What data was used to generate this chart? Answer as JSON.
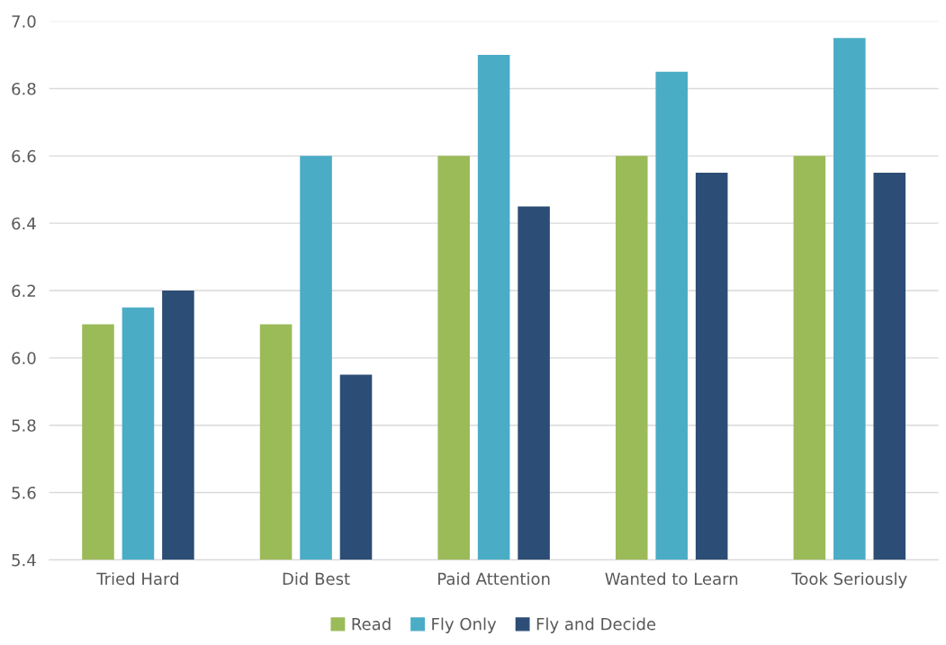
{
  "chart_data": {
    "type": "bar",
    "categories": [
      "Tried Hard",
      "Did Best",
      "Paid Attention",
      "Wanted to Learn",
      "Took Seriously"
    ],
    "series": [
      {
        "name": "Read",
        "color": "#9bbb59",
        "values": [
          6.1,
          6.1,
          6.6,
          6.6,
          6.6
        ]
      },
      {
        "name": "Fly Only",
        "color": "#4bacc6",
        "values": [
          6.15,
          6.6,
          6.9,
          6.85,
          6.95
        ]
      },
      {
        "name": "Fly and Decide",
        "color": "#2c4d75",
        "values": [
          6.2,
          5.95,
          6.45,
          6.55,
          6.55
        ]
      }
    ],
    "ylim": [
      5.4,
      7.0
    ],
    "yticks": [
      {
        "value": 5.4,
        "label": "5.4"
      },
      {
        "value": 5.6,
        "label": "5.6"
      },
      {
        "value": 5.8,
        "label": "5.8"
      },
      {
        "value": 6.0,
        "label": "6.0"
      },
      {
        "value": 6.2,
        "label": "6.2"
      },
      {
        "value": 6.4,
        "label": "6.4"
      },
      {
        "value": 6.6,
        "label": "6.6"
      },
      {
        "value": 6.8,
        "label": "6.8"
      },
      {
        "value": 7.0,
        "label": "7.0"
      }
    ],
    "grid": "y",
    "legend": "bottom"
  }
}
